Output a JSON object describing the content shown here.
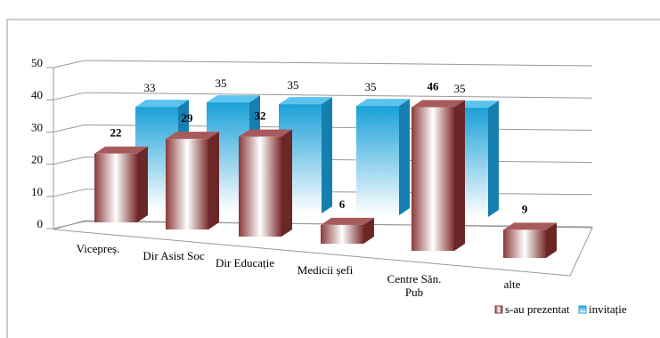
{
  "chart_data": {
    "type": "bar3d",
    "categories": [
      "Vicepreș.",
      "Dir Asist Soc",
      "Dir Educație",
      "Medicii șefi",
      "Centre Săn. Pub",
      "alte"
    ],
    "series": [
      {
        "name": "s-au prezentat",
        "color": "#8b3a3a",
        "values": [
          22,
          29,
          32,
          6,
          46,
          9
        ]
      },
      {
        "name": "invitație",
        "color": "#1aa0d8",
        "values": [
          33,
          35,
          35,
          35,
          35,
          null
        ]
      }
    ],
    "ylim": [
      0,
      50
    ],
    "yticks": [
      0,
      10,
      20,
      30,
      40,
      50
    ],
    "grid": true,
    "legend": "bottom-right"
  }
}
